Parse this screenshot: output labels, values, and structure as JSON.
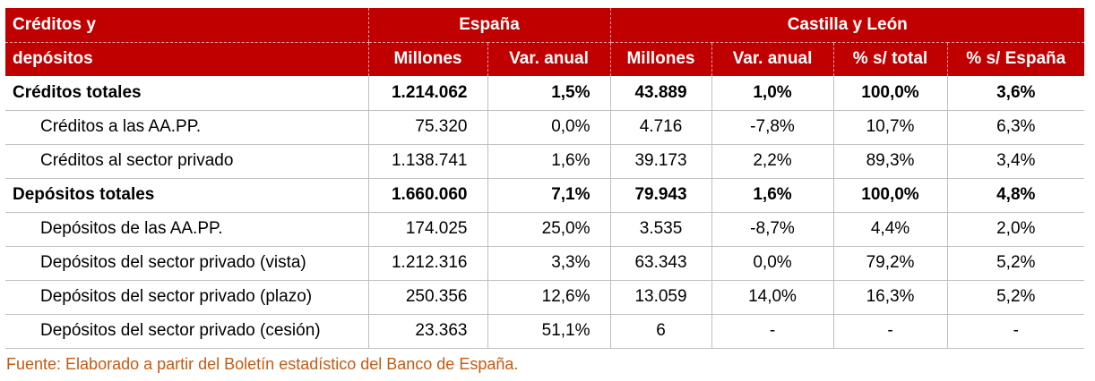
{
  "table": {
    "header": {
      "row_label_line1": "Créditos y",
      "row_label_line2": "depósitos",
      "group_spain": "España",
      "group_cyl": "Castilla y León",
      "col_millones": "Millones",
      "col_var_anual": "Var. anual",
      "col_millones_cyl": "Millones",
      "col_var_anual_cyl": "Var. anual",
      "col_pct_total": "% s/ total",
      "col_pct_espana": "% s/ España"
    },
    "rows": [
      {
        "label": "Créditos totales",
        "es_mill": "1.214.062",
        "es_var": "1,5%",
        "cyl_mill": "43.889",
        "cyl_var": "1,0%",
        "pct_total": "100,0%",
        "pct_es": "3,6%"
      },
      {
        "label": "Créditos a las AA.PP.",
        "es_mill": "75.320",
        "es_var": "0,0%",
        "cyl_mill": "4.716",
        "cyl_var": "-7,8%",
        "pct_total": "10,7%",
        "pct_es": "6,3%"
      },
      {
        "label": "Créditos al sector privado",
        "es_mill": "1.138.741",
        "es_var": "1,6%",
        "cyl_mill": "39.173",
        "cyl_var": "2,2%",
        "pct_total": "89,3%",
        "pct_es": "3,4%"
      },
      {
        "label": "Depósitos totales",
        "es_mill": "1.660.060",
        "es_var": "7,1%",
        "cyl_mill": "79.943",
        "cyl_var": "1,6%",
        "pct_total": "100,0%",
        "pct_es": "4,8%"
      },
      {
        "label": "Depósitos de las AA.PP.",
        "es_mill": "174.025",
        "es_var": "25,0%",
        "cyl_mill": "3.535",
        "cyl_var": "-8,7%",
        "pct_total": "4,4%",
        "pct_es": "2,0%"
      },
      {
        "label": "Depósitos del sector privado (vista)",
        "es_mill": "1.212.316",
        "es_var": "3,3%",
        "cyl_mill": "63.343",
        "cyl_var": "0,0%",
        "pct_total": "79,2%",
        "pct_es": "5,2%"
      },
      {
        "label": "Depósitos del sector privado (plazo)",
        "es_mill": "250.356",
        "es_var": "12,6%",
        "cyl_mill": "13.059",
        "cyl_var": "14,0%",
        "pct_total": "16,3%",
        "pct_es": "5,2%"
      },
      {
        "label": "Depósitos del sector privado (cesión)",
        "es_mill": "23.363",
        "es_var": "51,1%",
        "cyl_mill": "6",
        "cyl_var": "-",
        "pct_total": "-",
        "pct_es": "-"
      }
    ]
  },
  "source": "Fuente: Elaborado a partir del Boletín estadístico del Banco de España.",
  "colors": {
    "header_bg": "#c00000",
    "header_text": "#ffffff",
    "source_text": "#c55a11",
    "grid": "#bfbfbf"
  }
}
